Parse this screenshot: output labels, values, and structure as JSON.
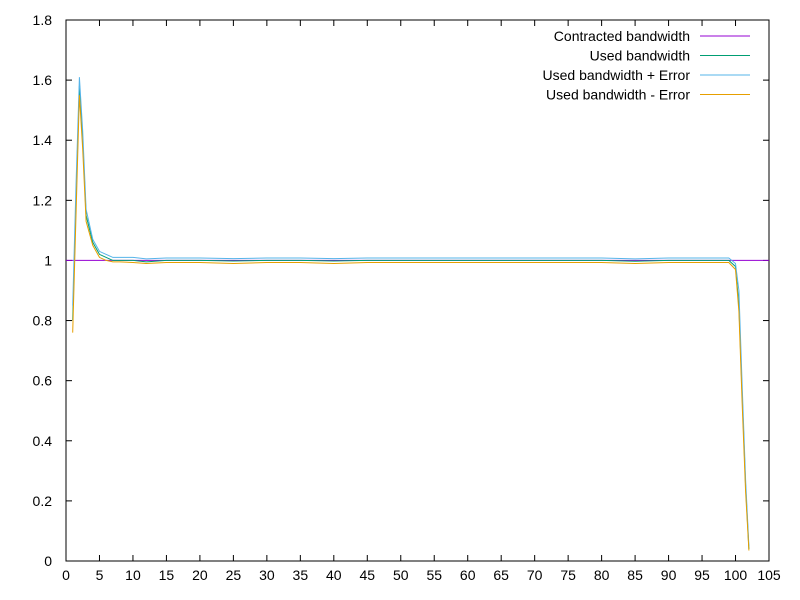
{
  "chart_data": {
    "type": "line",
    "title": "",
    "xlabel": "",
    "ylabel": "",
    "xlim": [
      0,
      105
    ],
    "ylim": [
      0,
      1.8
    ],
    "x_ticks": [
      "0",
      "5",
      "10",
      "15",
      "20",
      "25",
      "30",
      "35",
      "40",
      "45",
      "50",
      "55",
      "60",
      "65",
      "70",
      "75",
      "80",
      "85",
      "90",
      "95",
      "100",
      "105"
    ],
    "y_ticks": [
      "0",
      "0.2",
      "0.4",
      "0.6",
      "0.8",
      "1",
      "1.2",
      "1.4",
      "1.6",
      "1.8"
    ],
    "grid": false,
    "legend_position": "top-right",
    "series": [
      {
        "name": "Contracted bandwidth",
        "color": "#9400d3",
        "x": [
          0,
          105
        ],
        "y": [
          1,
          1
        ]
      },
      {
        "name": "Used bandwidth",
        "color": "#009e73",
        "x": [
          1,
          1.5,
          2,
          2.5,
          3,
          4,
          5,
          6,
          7,
          8,
          10,
          12,
          15,
          20,
          25,
          30,
          35,
          40,
          45,
          50,
          55,
          60,
          65,
          70,
          75,
          80,
          85,
          90,
          95,
          99,
          100,
          100.5,
          101,
          101.5,
          102
        ],
        "y": [
          0.8,
          1.2,
          1.58,
          1.4,
          1.15,
          1.06,
          1.02,
          1.01,
          1.0,
          1.0,
          1.0,
          0.995,
          1.0,
          1.0,
          0.998,
          1.0,
          1.0,
          0.998,
          1.0,
          1.0,
          1.0,
          1.0,
          1.0,
          1.0,
          1.0,
          1.0,
          0.997,
          1.0,
          1.0,
          1.0,
          0.98,
          0.85,
          0.55,
          0.25,
          0.04
        ]
      },
      {
        "name": "Used bandwidth + Error",
        "color": "#56b4e9",
        "x": [
          1,
          1.5,
          2,
          2.5,
          3,
          4,
          5,
          6,
          7,
          8,
          10,
          12,
          15,
          20,
          25,
          30,
          35,
          40,
          45,
          50,
          55,
          60,
          65,
          70,
          75,
          80,
          85,
          90,
          95,
          99,
          100,
          100.5,
          101,
          101.5,
          102
        ],
        "y": [
          0.85,
          1.25,
          1.61,
          1.43,
          1.17,
          1.07,
          1.03,
          1.02,
          1.01,
          1.01,
          1.01,
          1.005,
          1.008,
          1.008,
          1.006,
          1.008,
          1.008,
          1.006,
          1.008,
          1.008,
          1.008,
          1.008,
          1.008,
          1.008,
          1.008,
          1.008,
          1.005,
          1.008,
          1.008,
          1.008,
          0.99,
          0.9,
          0.58,
          0.27,
          0.05
        ]
      },
      {
        "name": "Used bandwidth - Error",
        "color": "#e69f00",
        "x": [
          1,
          1.5,
          2,
          2.5,
          3,
          4,
          5,
          6,
          7,
          8,
          10,
          12,
          15,
          20,
          25,
          30,
          35,
          40,
          45,
          50,
          55,
          60,
          65,
          70,
          75,
          80,
          85,
          90,
          95,
          99,
          100,
          100.5,
          101,
          101.5,
          102
        ],
        "y": [
          0.76,
          1.15,
          1.55,
          1.37,
          1.13,
          1.05,
          1.01,
          1.0,
          0.995,
          0.995,
          0.993,
          0.99,
          0.993,
          0.993,
          0.99,
          0.993,
          0.993,
          0.99,
          0.993,
          0.993,
          0.993,
          0.993,
          0.993,
          0.993,
          0.993,
          0.993,
          0.99,
          0.993,
          0.993,
          0.993,
          0.97,
          0.83,
          0.52,
          0.23,
          0.035
        ]
      }
    ]
  }
}
